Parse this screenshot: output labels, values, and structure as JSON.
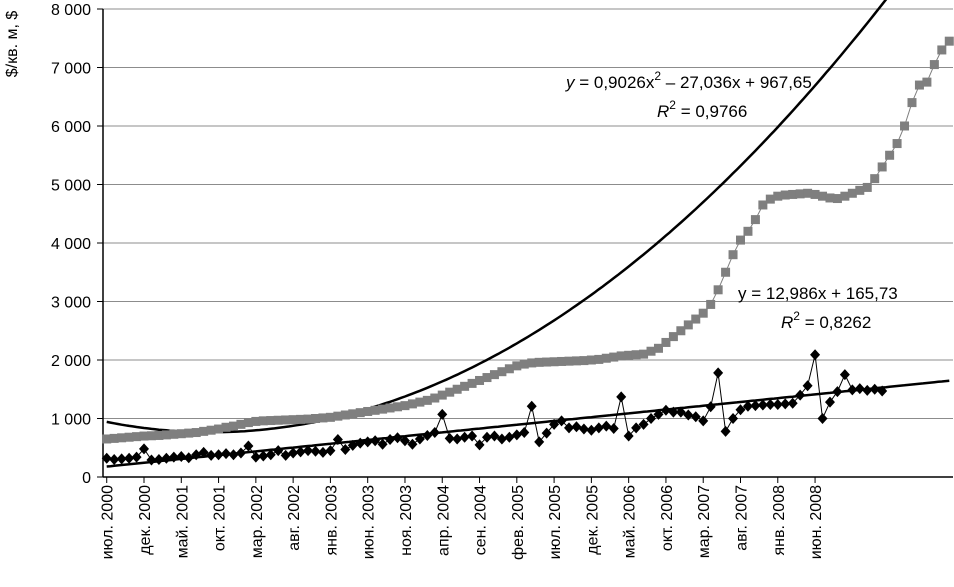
{
  "chart_data": {
    "type": "line",
    "ylabel": "$/кв. м, $",
    "ylim": [
      0,
      8000
    ],
    "y_ticks": [
      "0",
      "1 000",
      "2 000",
      "3 000",
      "4 000",
      "5 000",
      "6 000",
      "7 000",
      "8 000"
    ],
    "x_tick_labels": [
      "июл. 2000",
      "дек. 2000",
      "май. 2001",
      "окт. 2001",
      "мар. 2002",
      "авг. 2002",
      "янв. 2003",
      "июн. 2003",
      "ноя. 2003",
      "апр. 2004",
      "сен. 2004",
      "фев. 2005",
      "июл. 2005",
      "дек. 2005",
      "май. 2006",
      "окт. 2006",
      "мар. 2007",
      "авг. 2007",
      "янв. 2008",
      "июн. 2008"
    ],
    "x_tick_index": [
      0,
      5,
      10,
      15,
      20,
      25,
      30,
      35,
      40,
      45,
      50,
      55,
      60,
      65,
      70,
      75,
      80,
      85,
      90,
      95
    ],
    "grid": true,
    "series": [
      {
        "marker": "square",
        "color": "#7f7f7f",
        "values": [
          650,
          660,
          670,
          680,
          690,
          700,
          705,
          710,
          720,
          730,
          740,
          750,
          760,
          780,
          800,
          820,
          850,
          870,
          900,
          930,
          950,
          960,
          965,
          970,
          975,
          980,
          985,
          990,
          1000,
          1010,
          1020,
          1040,
          1060,
          1080,
          1100,
          1120,
          1140,
          1160,
          1180,
          1200,
          1220,
          1250,
          1280,
          1310,
          1350,
          1400,
          1450,
          1500,
          1550,
          1600,
          1650,
          1700,
          1750,
          1800,
          1850,
          1900,
          1930,
          1950,
          1960,
          1965,
          1970,
          1975,
          1980,
          1985,
          1990,
          2000,
          2010,
          2030,
          2050,
          2070,
          2080,
          2090,
          2100,
          2150,
          2200,
          2300,
          2400,
          2500,
          2600,
          2700,
          2800,
          2950,
          3200,
          3500,
          3800,
          4050,
          4200,
          4400,
          4650,
          4750,
          4800,
          4820,
          4830,
          4840,
          4850,
          4830,
          4800,
          4770,
          4760,
          4800,
          4850,
          4900,
          4950,
          5100,
          5300,
          5500,
          5700,
          6000,
          6400,
          6700,
          6750,
          7050,
          7300,
          7450
        ]
      },
      {
        "marker": "diamond",
        "color": "#000000",
        "values": [
          320,
          300,
          310,
          320,
          340,
          480,
          290,
          300,
          320,
          340,
          350,
          330,
          380,
          420,
          370,
          380,
          400,
          380,
          410,
          530,
          340,
          360,
          380,
          450,
          370,
          410,
          430,
          450,
          440,
          420,
          450,
          640,
          470,
          540,
          580,
          600,
          620,
          560,
          640,
          670,
          620,
          560,
          650,
          710,
          760,
          1070,
          660,
          650,
          680,
          700,
          550,
          680,
          700,
          650,
          680,
          720,
          760,
          1210,
          600,
          750,
          900,
          960,
          840,
          860,
          820,
          800,
          840,
          870,
          830,
          1370,
          700,
          840,
          900,
          1000,
          1070,
          1140,
          1110,
          1110,
          1060,
          1030,
          960,
          1200,
          1780,
          780,
          1000,
          1150,
          1210,
          1220,
          1230,
          1240,
          1240,
          1250,
          1260,
          1400,
          1560,
          2090,
          1000,
          1280,
          1460,
          1750,
          1490,
          1510,
          1480,
          1500,
          1470
        ]
      }
    ],
    "trendlines": [
      {
        "kind": "poly2",
        "coef": [
          0.9026,
          -27.036,
          967.65
        ],
        "equation_prefix": "y = 0,9026x",
        "equation_power": "2",
        "equation_suffix": " – 27,036x + 967,65",
        "r2_prefix": "R",
        "r2_power": "2",
        "r2_suffix": " = 0,9766"
      },
      {
        "kind": "linear",
        "coef": [
          12.986,
          165.73
        ],
        "equation_text": "y = 12,986x + 165,73",
        "r2_prefix": "R",
        "r2_power": "2",
        "r2_suffix": " = 0,8262"
      }
    ]
  }
}
